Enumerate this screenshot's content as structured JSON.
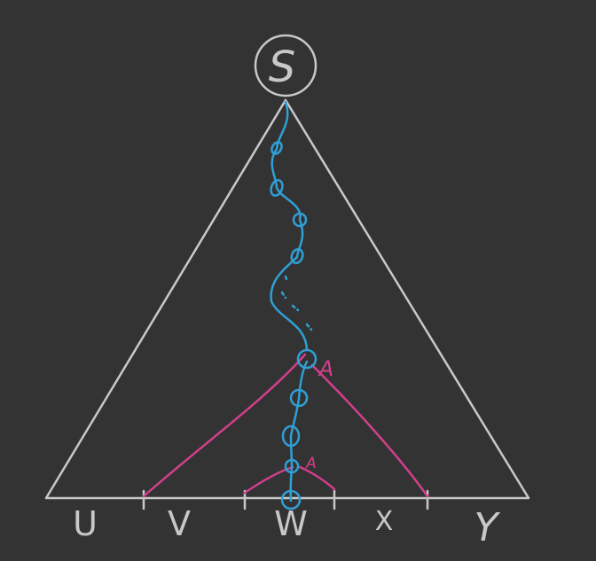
{
  "diagram": {
    "root_label": "S",
    "nonterminal_label": "A",
    "inner_nonterminal_label": "A",
    "segments": [
      "U",
      "V",
      "W",
      "X",
      "Y"
    ]
  },
  "colors": {
    "background": "#333333",
    "tree_outline": "#c8c8c8",
    "path": "#2f9fd6",
    "subtree": "#d23f8c"
  }
}
